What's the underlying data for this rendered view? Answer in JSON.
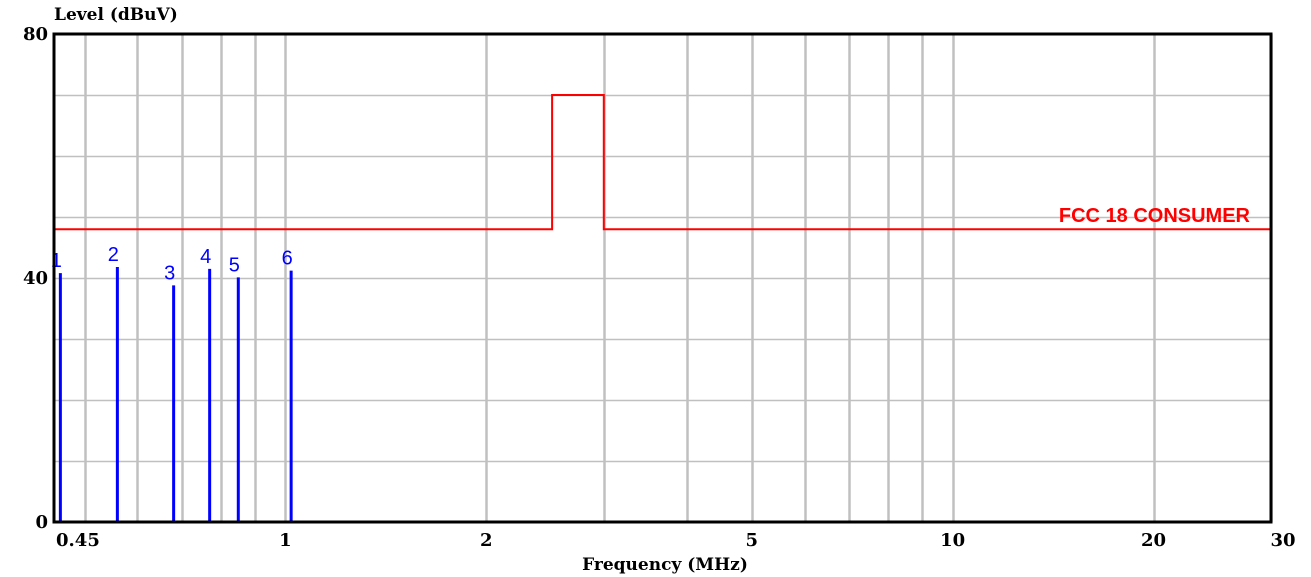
{
  "chart_data": {
    "type": "line",
    "title": "",
    "ylabel": "Level (dBuV)",
    "xlabel": "Frequency (MHz)",
    "x_scale": "log",
    "xlim": [
      0.45,
      30
    ],
    "ylim": [
      0,
      80
    ],
    "y_ticks": [
      0,
      40,
      80
    ],
    "y_tick_labels": [
      "0",
      "40",
      "80"
    ],
    "x_ticks": [
      0.45,
      1,
      2,
      5,
      10,
      20,
      30
    ],
    "x_tick_labels": [
      "0.45",
      "1",
      "2",
      "5",
      "10",
      "20",
      "30"
    ],
    "y_grid": [
      0,
      10,
      20,
      30,
      40,
      50,
      60,
      70,
      80
    ],
    "x_grid": [
      0.5,
      0.6,
      0.7,
      0.8,
      0.9,
      1,
      2,
      3,
      4,
      5,
      6,
      7,
      8,
      9,
      10,
      20,
      30
    ],
    "grid": true,
    "limit_line": {
      "name": "FCC 18 CONSUMER",
      "color": "#ff0000",
      "x": [
        0.45,
        2.51,
        2.51,
        3.0,
        3.0,
        30
      ],
      "y": [
        48,
        48,
        70,
        70,
        48,
        48
      ]
    },
    "markers": {
      "color": "#0000ff",
      "labels": [
        "1",
        "2",
        "3",
        "4",
        "5",
        "6"
      ],
      "x": [
        0.46,
        0.56,
        0.68,
        0.77,
        0.85,
        1.02
      ],
      "y": [
        40.8,
        41.8,
        38.8,
        41.5,
        40.1,
        41.2
      ]
    },
    "colors": {
      "axis": "#000000",
      "grid": "#c0c0c0",
      "background": "#ffffff"
    }
  }
}
